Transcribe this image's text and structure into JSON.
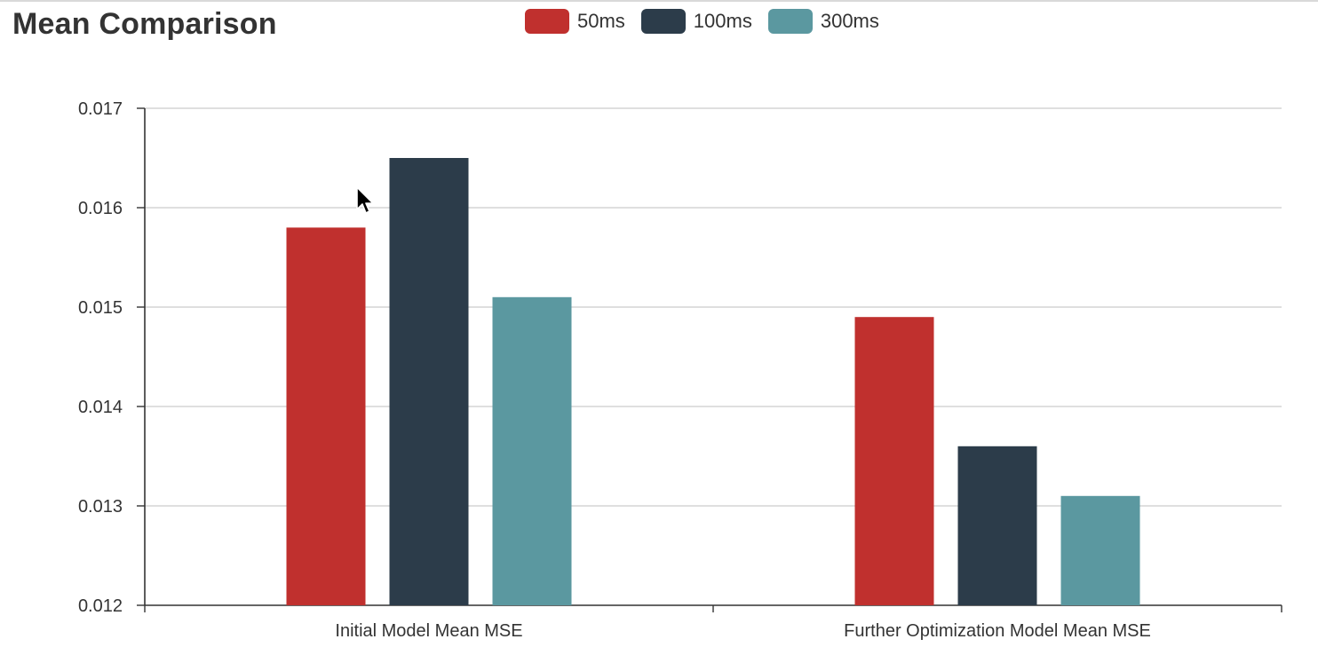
{
  "chart_data": {
    "type": "bar",
    "title": "Mean Comparison",
    "categories": [
      "Initial Model Mean MSE",
      "Further Optimization Model Mean MSE"
    ],
    "series": [
      {
        "name": "50ms",
        "color": "#c0302e",
        "values": [
          0.0158,
          0.0149
        ]
      },
      {
        "name": "100ms",
        "color": "#2c3c4a",
        "values": [
          0.0165,
          0.0136
        ]
      },
      {
        "name": "300ms",
        "color": "#5b98a0",
        "values": [
          0.0151,
          0.0131
        ]
      }
    ],
    "ylim": [
      0.012,
      0.017
    ],
    "yticks": [
      "0.012",
      "0.013",
      "0.014",
      "0.015",
      "0.016",
      "0.017"
    ],
    "xlabel": "",
    "ylabel": "",
    "grid": true,
    "legend_position": "top-center"
  }
}
